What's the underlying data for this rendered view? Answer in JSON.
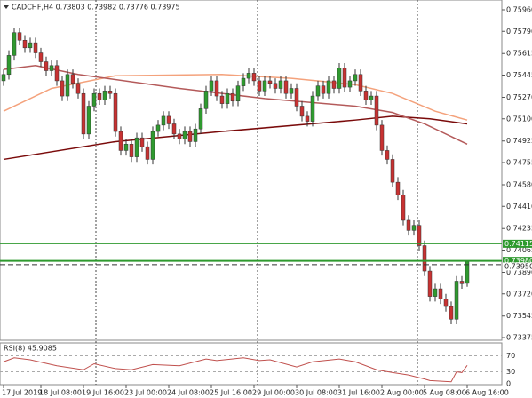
{
  "chart_data": [
    {
      "type": "candlestick",
      "title": "CADCHF,H4 0.73803 0.73982 0.73776 0.73975",
      "up_color": "#2f9a2f",
      "down_color": "#c83232",
      "open": [
        0.754,
        0.7545,
        0.756,
        0.7578,
        0.7572,
        0.7566,
        0.757,
        0.7562,
        0.7555,
        0.7548,
        0.7552,
        0.754,
        0.7528,
        0.7545,
        0.7538,
        0.753,
        0.7498,
        0.752,
        0.753,
        0.7525,
        0.7532,
        0.753,
        0.75,
        0.7485,
        0.749,
        0.748,
        0.7495,
        0.7488,
        0.7478,
        0.75,
        0.7505,
        0.7512,
        0.7506,
        0.7498,
        0.7494,
        0.75,
        0.7492,
        0.7502,
        0.7518,
        0.7532,
        0.754,
        0.7528,
        0.7522,
        0.753,
        0.7524,
        0.7536,
        0.7542,
        0.7546,
        0.754,
        0.7532,
        0.754,
        0.7538,
        0.7534,
        0.754,
        0.753,
        0.7534,
        0.752,
        0.7512,
        0.7508,
        0.7528,
        0.7536,
        0.753,
        0.754,
        0.7534,
        0.755,
        0.7535,
        0.754,
        0.7545,
        0.7532,
        0.7525,
        0.7528,
        0.7505,
        0.7485,
        0.7478,
        0.746,
        0.745,
        0.743,
        0.7422,
        0.7426,
        0.741,
        0.739,
        0.737,
        0.7376,
        0.7368,
        0.7362,
        0.7352,
        0.7382,
        0.73803
      ],
      "high": [
        0.7549,
        0.7564,
        0.7582,
        0.7582,
        0.7576,
        0.7574,
        0.7574,
        0.7566,
        0.7559,
        0.7556,
        0.7556,
        0.7544,
        0.7549,
        0.7549,
        0.7542,
        0.7534,
        0.7524,
        0.7534,
        0.7534,
        0.7536,
        0.7536,
        0.7534,
        0.7504,
        0.7494,
        0.7494,
        0.7499,
        0.7499,
        0.7492,
        0.7504,
        0.7509,
        0.7516,
        0.7516,
        0.751,
        0.7502,
        0.7504,
        0.7504,
        0.7506,
        0.7522,
        0.7536,
        0.7544,
        0.7544,
        0.7532,
        0.7534,
        0.7534,
        0.754,
        0.7546,
        0.755,
        0.755,
        0.7544,
        0.7544,
        0.7544,
        0.7542,
        0.7544,
        0.7544,
        0.7538,
        0.7538,
        0.7524,
        0.7516,
        0.7532,
        0.754,
        0.754,
        0.7544,
        0.7544,
        0.7554,
        0.7554,
        0.7544,
        0.7549,
        0.7549,
        0.7536,
        0.7532,
        0.7532,
        0.7509,
        0.7489,
        0.7482,
        0.7464,
        0.7454,
        0.7434,
        0.743,
        0.743,
        0.7414,
        0.7394,
        0.738,
        0.738,
        0.7372,
        0.7366,
        0.7386,
        0.7386,
        0.73982
      ],
      "low": [
        0.7536,
        0.7541,
        0.7556,
        0.7568,
        0.7562,
        0.7562,
        0.7558,
        0.7551,
        0.7544,
        0.7544,
        0.7536,
        0.7524,
        0.7524,
        0.7534,
        0.7526,
        0.7494,
        0.7494,
        0.7516,
        0.7521,
        0.7521,
        0.7526,
        0.7496,
        0.7481,
        0.7481,
        0.7476,
        0.7476,
        0.7484,
        0.7474,
        0.7474,
        0.7496,
        0.7501,
        0.7502,
        0.7494,
        0.749,
        0.749,
        0.7488,
        0.7488,
        0.7498,
        0.7514,
        0.7528,
        0.7524,
        0.7518,
        0.7518,
        0.752,
        0.752,
        0.7532,
        0.7538,
        0.7536,
        0.7528,
        0.7528,
        0.7534,
        0.753,
        0.753,
        0.7526,
        0.7526,
        0.7516,
        0.7508,
        0.7504,
        0.7504,
        0.7524,
        0.7526,
        0.7526,
        0.753,
        0.753,
        0.7531,
        0.7531,
        0.7536,
        0.7528,
        0.7521,
        0.7521,
        0.7501,
        0.7481,
        0.7474,
        0.7456,
        0.7446,
        0.7426,
        0.7418,
        0.7418,
        0.7406,
        0.7386,
        0.7366,
        0.7366,
        0.7364,
        0.7358,
        0.7348,
        0.7348,
        0.7376,
        0.73776
      ],
      "close": [
        0.7545,
        0.756,
        0.7578,
        0.7572,
        0.7566,
        0.757,
        0.7562,
        0.7555,
        0.7548,
        0.7552,
        0.754,
        0.7528,
        0.7545,
        0.7538,
        0.753,
        0.7498,
        0.752,
        0.753,
        0.7525,
        0.7532,
        0.753,
        0.75,
        0.7485,
        0.749,
        0.748,
        0.7495,
        0.7488,
        0.7478,
        0.75,
        0.7505,
        0.7512,
        0.7506,
        0.7498,
        0.7494,
        0.75,
        0.7492,
        0.7502,
        0.7518,
        0.7532,
        0.754,
        0.7528,
        0.7522,
        0.753,
        0.7524,
        0.7536,
        0.7542,
        0.7546,
        0.754,
        0.7532,
        0.754,
        0.7538,
        0.7534,
        0.754,
        0.753,
        0.7534,
        0.752,
        0.7512,
        0.7508,
        0.7528,
        0.7536,
        0.753,
        0.754,
        0.7534,
        0.755,
        0.7535,
        0.754,
        0.7545,
        0.7532,
        0.7525,
        0.7528,
        0.7505,
        0.7485,
        0.7478,
        0.746,
        0.745,
        0.743,
        0.7422,
        0.7426,
        0.741,
        0.739,
        0.737,
        0.7376,
        0.7368,
        0.7362,
        0.7352,
        0.7382,
        0.738,
        0.73975
      ],
      "xticks": [
        {
          "value": 0,
          "label": "17 Jul 2019"
        },
        {
          "value": 7,
          "label": "18 Jul 08:00"
        },
        {
          "value": 15,
          "label": "19 Jul 16:00"
        },
        {
          "value": 23,
          "label": "23 Jul 00:00"
        },
        {
          "value": 31,
          "label": "24 Jul 08:00"
        },
        {
          "value": 39,
          "label": "25 Jul 16:00"
        },
        {
          "value": 47,
          "label": "29 Jul 00:00"
        },
        {
          "value": 55,
          "label": "30 Jul 08:00"
        },
        {
          "value": 63,
          "label": "31 Jul 16:00"
        },
        {
          "value": 71,
          "label": "2 Aug 00:00"
        },
        {
          "value": 79,
          "label": "5 Aug 08:00"
        },
        {
          "value": 87,
          "label": "6 Aug 16:00"
        }
      ],
      "ylim": [
        0.73354,
        0.76037
      ],
      "yticks": [
        {
          "value": 0.7596,
          "label": "0.75960"
        },
        {
          "value": 0.7579,
          "label": "0.75790"
        },
        0.75615,
        0.75445,
        {
          "value": 0.7527,
          "label": "0.75270"
        },
        {
          "value": 0.751,
          "label": "0.75100"
        },
        0.74925,
        0.74755,
        {
          "value": 0.7458,
          "label": "0.74580"
        },
        {
          "value": 0.7441,
          "label": "0.74410"
        },
        0.74235,
        0.74065,
        {
          "value": 0.7389,
          "label": "0.73890"
        },
        {
          "value": 0.7372,
          "label": "0.73720"
        },
        0.73545,
        0.73375
      ],
      "moving_averages": [
        {
          "color": "#7a0a0a",
          "x": [
            0,
            21,
            41,
            66,
            73,
            80,
            87
          ],
          "values": [
            0.7478,
            0.7492,
            0.75,
            0.7509,
            0.7512,
            0.751,
            0.7506
          ]
        },
        {
          "color": "#f4a27c",
          "x": [
            0,
            9,
            21,
            41,
            54,
            66,
            73,
            81,
            87
          ],
          "values": [
            0.7516,
            0.7534,
            0.7544,
            0.7545,
            0.7542,
            0.7537,
            0.753,
            0.7516,
            0.7509
          ]
        },
        {
          "color": "#b45a5a",
          "x": [
            0,
            6,
            14,
            33,
            49,
            66,
            73,
            79,
            87
          ],
          "values": [
            0.7549,
            0.7552,
            0.7545,
            0.7534,
            0.7526,
            0.752,
            0.7515,
            0.7506,
            0.749
          ]
        }
      ],
      "levels": [
        0.74115,
        {
          "value": 0.7398,
          "label": "0.73980"
        },
        {
          "value": 0.7395,
          "label": "0.73950"
        }
      ],
      "level_styles": [
        "solid",
        "solid",
        "dashed"
      ],
      "level_color": "#2f9a2f"
    },
    {
      "type": "line",
      "title": "RSI(8) 45.9085",
      "color": "#c0504d",
      "x": [
        0,
        2,
        5,
        10,
        15,
        17,
        21,
        24,
        28,
        33,
        38,
        40,
        45,
        48,
        50,
        55,
        58,
        63,
        66,
        70,
        73,
        76,
        79,
        80,
        84,
        85,
        86,
        87
      ],
      "values": [
        55,
        65,
        60,
        45,
        35,
        50,
        38,
        35,
        48,
        45,
        62,
        58,
        65,
        58,
        60,
        42,
        55,
        62,
        55,
        35,
        28,
        22,
        12,
        8,
        5,
        30,
        28,
        45.9085
      ],
      "ylim": [
        0,
        100
      ],
      "yticks": [
        70,
        30,
        0
      ]
    }
  ]
}
